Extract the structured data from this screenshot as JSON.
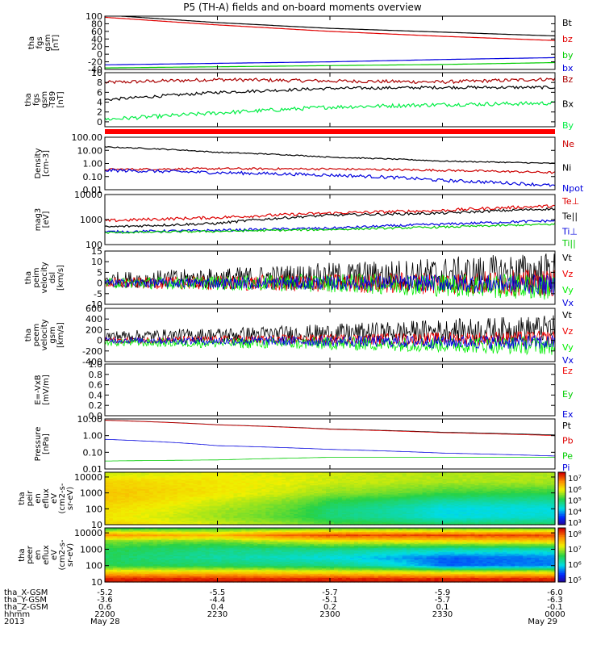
{
  "title": "P5 (TH-A) fields and on-board moments overview",
  "chart_data": [
    {
      "type": "line",
      "ylabel": [
        "tha",
        "fgs",
        "gsm",
        "[nT]"
      ],
      "ylim": [
        -40,
        100
      ],
      "tick_labels": [
        "100",
        "80",
        "60",
        "40",
        "20",
        "0",
        "-20",
        "-40"
      ],
      "tick_values": [
        100,
        80,
        60,
        40,
        20,
        0,
        -20,
        -40
      ],
      "x": [
        2200,
        2230,
        2300,
        2330,
        2400
      ],
      "series": [
        {
          "name": "Bt",
          "color": "#000000",
          "values": [
            103,
            83,
            68,
            58,
            48
          ]
        },
        {
          "name": "bz",
          "color": "#e00000",
          "values": [
            97,
            77,
            60,
            47,
            36
          ]
        },
        {
          "name": "by",
          "color": "#00cc00",
          "values": [
            -36,
            -33,
            -30,
            -27,
            -22
          ]
        },
        {
          "name": "bx",
          "color": "#0000dd",
          "values": [
            -28,
            -24,
            -20,
            -14,
            -9
          ]
        }
      ]
    },
    {
      "type": "line",
      "ylabel": [
        "tha",
        "fgs",
        "gsm",
        "-T89",
        "[nT]"
      ],
      "ylim": [
        -1,
        10
      ],
      "tick_labels": [
        "10",
        "8",
        "6",
        "4",
        "2",
        "0"
      ],
      "tick_values": [
        10,
        8,
        6,
        4,
        2,
        0
      ],
      "x": [
        2200,
        2230,
        2300,
        2330,
        2400
      ],
      "series": [
        {
          "name": "Bz",
          "color": "#aa0000",
          "values": [
            8.0,
            8.6,
            8.3,
            8.1,
            8.7
          ]
        },
        {
          "name": "Bx",
          "color": "#000000",
          "values": [
            4.5,
            6.0,
            6.8,
            7.0,
            7.0
          ]
        },
        {
          "name": "By",
          "color": "#00ee44",
          "values": [
            0.5,
            1.8,
            3.0,
            3.5,
            3.8
          ]
        }
      ]
    },
    {
      "type": "bar",
      "ylabel": [],
      "values": [
        1
      ],
      "color": "#ff0000"
    },
    {
      "type": "line",
      "ylabel": [
        "Density",
        "[cm-3]"
      ],
      "scale": "log",
      "ylim": [
        0.01,
        100
      ],
      "tick_labels": [
        "100.00",
        "10.00",
        "1.00",
        "0.10",
        "0.01"
      ],
      "tick_values": [
        100,
        10,
        1,
        0.1,
        0.01
      ],
      "x": [
        2200,
        2230,
        2300,
        2330,
        2400
      ],
      "series": [
        {
          "name": "Ne",
          "color": "#cc0000",
          "values": [
            0.35,
            0.4,
            0.38,
            0.3,
            0.2
          ]
        },
        {
          "name": "Ni",
          "color": "#000000",
          "values": [
            18,
            7,
            3,
            1.5,
            1.0
          ]
        },
        {
          "name": "Npot",
          "color": "#0000dd",
          "values": [
            0.3,
            0.2,
            0.13,
            0.05,
            0.02
          ]
        }
      ]
    },
    {
      "type": "line",
      "ylabel": [
        "mag3",
        "[eV]"
      ],
      "scale": "log",
      "ylim": [
        100,
        10000
      ],
      "tick_labels": [
        "10000",
        "1000",
        "100"
      ],
      "tick_values": [
        10000,
        1000,
        100
      ],
      "x": [
        2200,
        2230,
        2300,
        2330,
        2400
      ],
      "series": [
        {
          "name": "Te⊥",
          "color": "#dd0000",
          "values": [
            900,
            1200,
            1800,
            2300,
            3500
          ]
        },
        {
          "name": "Te||",
          "color": "#000000",
          "values": [
            500,
            700,
            1500,
            1800,
            2700
          ]
        },
        {
          "name": "Ti⊥",
          "color": "#0000dd",
          "values": [
            320,
            370,
            450,
            650,
            900
          ]
        },
        {
          "name": "Ti||",
          "color": "#00cc00",
          "values": [
            300,
            340,
            400,
            500,
            650
          ]
        }
      ]
    },
    {
      "type": "line",
      "ylabel": [
        "tha",
        "peim",
        "velocity",
        "dsl",
        "[km/s]"
      ],
      "ylim": [
        -10,
        15
      ],
      "tick_labels": [
        "15",
        "10",
        "5",
        "0",
        "-5",
        "-10"
      ],
      "tick_values": [
        15,
        10,
        5,
        0,
        -5,
        -10
      ],
      "x": [
        2200,
        2230,
        2300,
        2330,
        2400
      ],
      "series": [
        {
          "name": "Vt",
          "color": "#000000",
          "values": [
            1.5,
            2,
            3,
            4,
            5
          ]
        },
        {
          "name": "Vz",
          "color": "#ee0000",
          "values": [
            0,
            0,
            0,
            0,
            0
          ]
        },
        {
          "name": "Vy",
          "color": "#00ee00",
          "values": [
            0,
            0,
            0,
            -1,
            -2
          ]
        },
        {
          "name": "Vx",
          "color": "#0000dd",
          "values": [
            0,
            0,
            0,
            0,
            -1
          ]
        }
      ]
    },
    {
      "type": "line",
      "ylabel": [
        "tha",
        "peem",
        "velocity",
        "gsm",
        "[km/s]"
      ],
      "ylim": [
        -400,
        600
      ],
      "tick_labels": [
        "600",
        "400",
        "200",
        "0",
        "-200",
        "-400"
      ],
      "tick_values": [
        600,
        400,
        200,
        0,
        -200,
        -400
      ],
      "x": [
        2200,
        2230,
        2300,
        2330,
        2400
      ],
      "series": [
        {
          "name": "Vt",
          "color": "#000000",
          "values": [
            80,
            100,
            130,
            180,
            220
          ]
        },
        {
          "name": "Vz",
          "color": "#ee0000",
          "values": [
            0,
            10,
            20,
            30,
            40
          ]
        },
        {
          "name": "Vy",
          "color": "#00ee00",
          "values": [
            -40,
            -50,
            -60,
            -80,
            -100
          ]
        },
        {
          "name": "Vx",
          "color": "#0000dd",
          "values": [
            0,
            -10,
            -20,
            -30,
            -40
          ]
        }
      ]
    },
    {
      "type": "line",
      "ylabel": [
        "E=-VxB",
        "[mV/m]"
      ],
      "ylim": [
        0,
        1
      ],
      "tick_labels": [
        "1.0",
        "0.8",
        "0.6",
        "0.4",
        "0.2",
        "0.0"
      ],
      "tick_values": [
        1,
        0.8,
        0.6,
        0.4,
        0.2,
        0
      ],
      "x": [],
      "series": [
        {
          "name": "Ez",
          "color": "#ee0000",
          "values": []
        },
        {
          "name": "Ey",
          "color": "#00cc00",
          "values": []
        },
        {
          "name": "Ex",
          "color": "#0000dd",
          "values": []
        }
      ]
    },
    {
      "type": "line",
      "ylabel": [
        "Pressure",
        "[nPa]"
      ],
      "scale": "log",
      "ylim": [
        0.01,
        10
      ],
      "tick_labels": [
        "10.00",
        "1.00",
        "0.10",
        "0.01"
      ],
      "tick_values": [
        10,
        1,
        0.1,
        0.01
      ],
      "x": [
        2200,
        2230,
        2300,
        2330,
        2400
      ],
      "series": [
        {
          "name": "Pt",
          "color": "#000000",
          "values": [
            8.5,
            4.5,
            2.5,
            1.6,
            1.1
          ]
        },
        {
          "name": "Pb",
          "color": "#dd0000",
          "values": [
            8.3,
            4.4,
            2.4,
            1.5,
            1.0
          ]
        },
        {
          "name": "Pe",
          "color": "#00cc00",
          "values": [
            0.03,
            0.035,
            0.05,
            0.05,
            0.05
          ]
        },
        {
          "name": "Pi",
          "color": "#0000dd",
          "values": [
            0.6,
            0.25,
            0.15,
            0.09,
            0.06
          ]
        }
      ]
    },
    {
      "type": "heatmap",
      "ylabel": [
        "tha",
        "peir",
        "en",
        "eflux",
        "eV",
        "(cm2-s-",
        "sr-eV)"
      ],
      "scale": "log",
      "ylim": [
        10,
        20000
      ],
      "tick_labels": [
        "10000",
        "1000",
        "100",
        "10"
      ],
      "tick_values": [
        10000,
        1000,
        100,
        10
      ],
      "colorbar": {
        "labels": [
          "10⁷",
          "10⁶",
          "10⁵",
          "10⁴",
          "10³"
        ],
        "range": [
          1000,
          10000000
        ]
      },
      "x": [
        2200,
        2230,
        2300,
        2330,
        2400
      ],
      "energy": [
        15000,
        5000,
        1000,
        300,
        100,
        30,
        10
      ],
      "values": [
        [
          400000,
          500000,
          400000,
          300000,
          300000
        ],
        [
          800000,
          600000,
          400000,
          300000,
          300000
        ],
        [
          1000000,
          600000,
          250000,
          120000,
          100000
        ],
        [
          900000,
          400000,
          100000,
          40000,
          40000
        ],
        [
          700000,
          300000,
          60000,
          20000,
          20000
        ],
        [
          600000,
          250000,
          60000,
          20000,
          25000
        ],
        [
          800000,
          400000,
          150000,
          80000,
          80000
        ]
      ]
    },
    {
      "type": "heatmap",
      "ylabel": [
        "tha",
        "peer",
        "en",
        "eflux",
        "eV",
        "(cm2-s-",
        "sr-eV)"
      ],
      "scale": "log",
      "ylim": [
        10,
        20000
      ],
      "tick_labels": [
        "10000",
        "1000",
        "100",
        "10"
      ],
      "tick_values": [
        10000,
        1000,
        100,
        10
      ],
      "colorbar": {
        "labels": [
          "10⁸",
          "10⁷",
          "10⁶",
          "10⁵"
        ],
        "range": [
          100000,
          100000000
        ]
      },
      "x": [
        2200,
        2230,
        2300,
        2330,
        2400
      ],
      "energy": [
        15000,
        7000,
        3000,
        1000,
        300,
        100,
        40,
        15
      ],
      "values": [
        [
          5000000,
          5000000,
          8000000,
          8000000,
          8000000
        ],
        [
          30000000,
          20000000,
          60000000,
          60000000,
          60000000
        ],
        [
          5000000,
          5000000,
          10000000,
          12000000,
          15000000
        ],
        [
          3000000,
          2000000,
          2000000,
          1500000,
          1500000
        ],
        [
          2500000,
          1500000,
          1000000,
          400000,
          500000
        ],
        [
          3000000,
          2500000,
          2000000,
          400000,
          500000
        ],
        [
          15000000,
          15000000,
          12000000,
          10000000,
          10000000
        ],
        [
          80000000,
          80000000,
          80000000,
          80000000,
          80000000
        ]
      ]
    }
  ],
  "x_axis": {
    "tick_values": [
      2200,
      2230,
      2300,
      2330,
      2400
    ],
    "rows": [
      {
        "label": "tha_X-GSM",
        "values": [
          "-5.2",
          "-5.5",
          "-5.7",
          "-5.9",
          "-6.0"
        ]
      },
      {
        "label": "tha_Y-GSM",
        "values": [
          "-3.6",
          "-4.4",
          "-5.1",
          "-5.7",
          "-6.3"
        ]
      },
      {
        "label": "tha_Z-GSM",
        "values": [
          "0.6",
          "0.4",
          "0.2",
          "0.1",
          "-0.1"
        ]
      },
      {
        "label": "hhmm",
        "values": [
          "2200",
          "2230",
          "2300",
          "2330",
          "0000"
        ]
      },
      {
        "label": "2013",
        "values": [
          "May 28",
          "",
          "",
          "",
          "May 29"
        ]
      }
    ]
  }
}
